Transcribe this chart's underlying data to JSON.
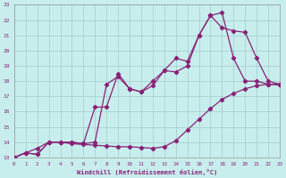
{
  "xlabel": "Windchill (Refroidissement éolien,°C)",
  "xlim": [
    0,
    23
  ],
  "ylim": [
    13,
    23
  ],
  "xticks": [
    0,
    1,
    2,
    3,
    4,
    5,
    6,
    7,
    8,
    9,
    10,
    11,
    12,
    13,
    14,
    15,
    16,
    17,
    18,
    19,
    20,
    21,
    22,
    23
  ],
  "yticks": [
    13,
    14,
    15,
    16,
    17,
    18,
    19,
    20,
    21,
    22,
    23
  ],
  "bg_color": "#c8eded",
  "grid_color": "#a0cccc",
  "line_color": "#882277",
  "line1_x": [
    0,
    1,
    2,
    3,
    4,
    5,
    6,
    7,
    8,
    9,
    10,
    11,
    12,
    13,
    14,
    15,
    16,
    17,
    18,
    19,
    20,
    21,
    22,
    23
  ],
  "line1_y": [
    13.0,
    13.3,
    13.6,
    14.0,
    14.0,
    13.9,
    13.85,
    13.8,
    13.75,
    13.7,
    13.7,
    13.65,
    13.6,
    13.7,
    14.1,
    14.8,
    15.5,
    16.2,
    16.8,
    17.2,
    17.5,
    17.7,
    17.8,
    17.8
  ],
  "line2_x": [
    0,
    1,
    2,
    3,
    4,
    5,
    6,
    7,
    8,
    9,
    10,
    11,
    12,
    13,
    14,
    15,
    16,
    17,
    18,
    19,
    20,
    21,
    22,
    23
  ],
  "line2_y": [
    13.0,
    13.3,
    13.2,
    14.0,
    14.0,
    14.0,
    13.9,
    14.0,
    17.8,
    18.3,
    17.5,
    17.3,
    17.7,
    18.7,
    18.6,
    19.0,
    21.0,
    22.3,
    22.5,
    19.5,
    18.0,
    18.0,
    17.8,
    17.75
  ],
  "line3_x": [
    0,
    1,
    2,
    3,
    4,
    5,
    6,
    7,
    8,
    9,
    10,
    11,
    12,
    13,
    14,
    15,
    16,
    17,
    18,
    19,
    20,
    21,
    22,
    23
  ],
  "line3_y": [
    13.0,
    13.3,
    13.2,
    14.0,
    14.0,
    14.0,
    13.9,
    16.3,
    16.3,
    18.5,
    17.5,
    17.3,
    18.0,
    18.7,
    19.5,
    19.3,
    21.0,
    22.3,
    21.5,
    21.3,
    21.2,
    19.5,
    18.0,
    17.8
  ]
}
